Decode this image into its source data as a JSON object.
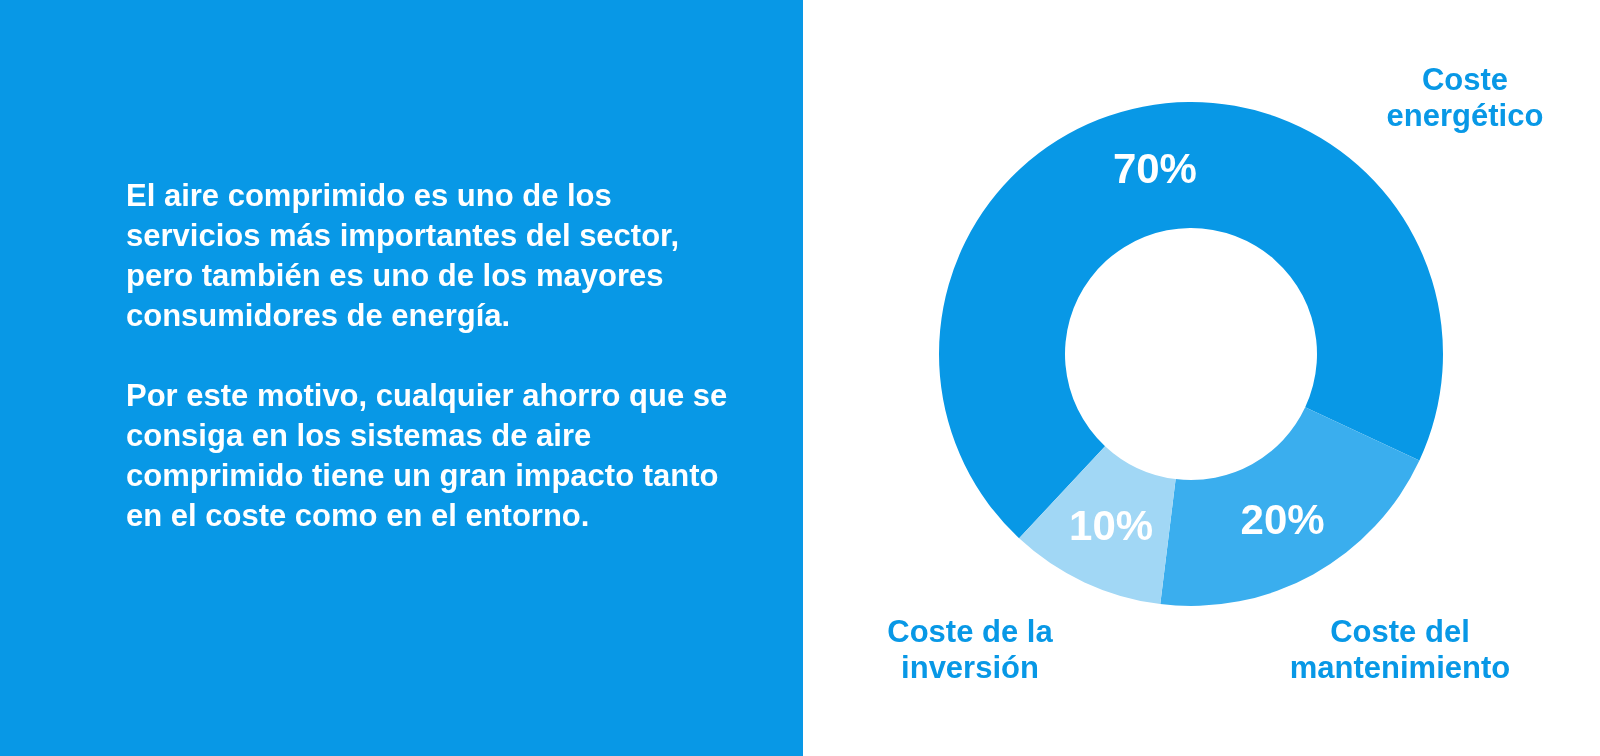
{
  "chart_data": [
    {
      "type": "other",
      "annotations": [
        "El aire comprimido es uno  de los servicios más  importantes del sector,  pero también es uno de los mayores consumidores de energía.",
        "Por este motivo, cualquier ahorro que se consiga en los sistemas de aire comprimido tiene un  gran impacto tanto en el  coste como en el entorno."
      ]
    },
    {
      "type": "donut",
      "categories": [
        "Coste energético",
        "Coste del mantenimiento",
        "Coste de la inversión"
      ],
      "values": [
        70,
        20,
        10
      ],
      "colors": [
        "#0898e6",
        "#3aaeee",
        "#a1d7f5"
      ],
      "value_labels": [
        "70%",
        "20%",
        "10%"
      ],
      "legend": false
    }
  ]
}
